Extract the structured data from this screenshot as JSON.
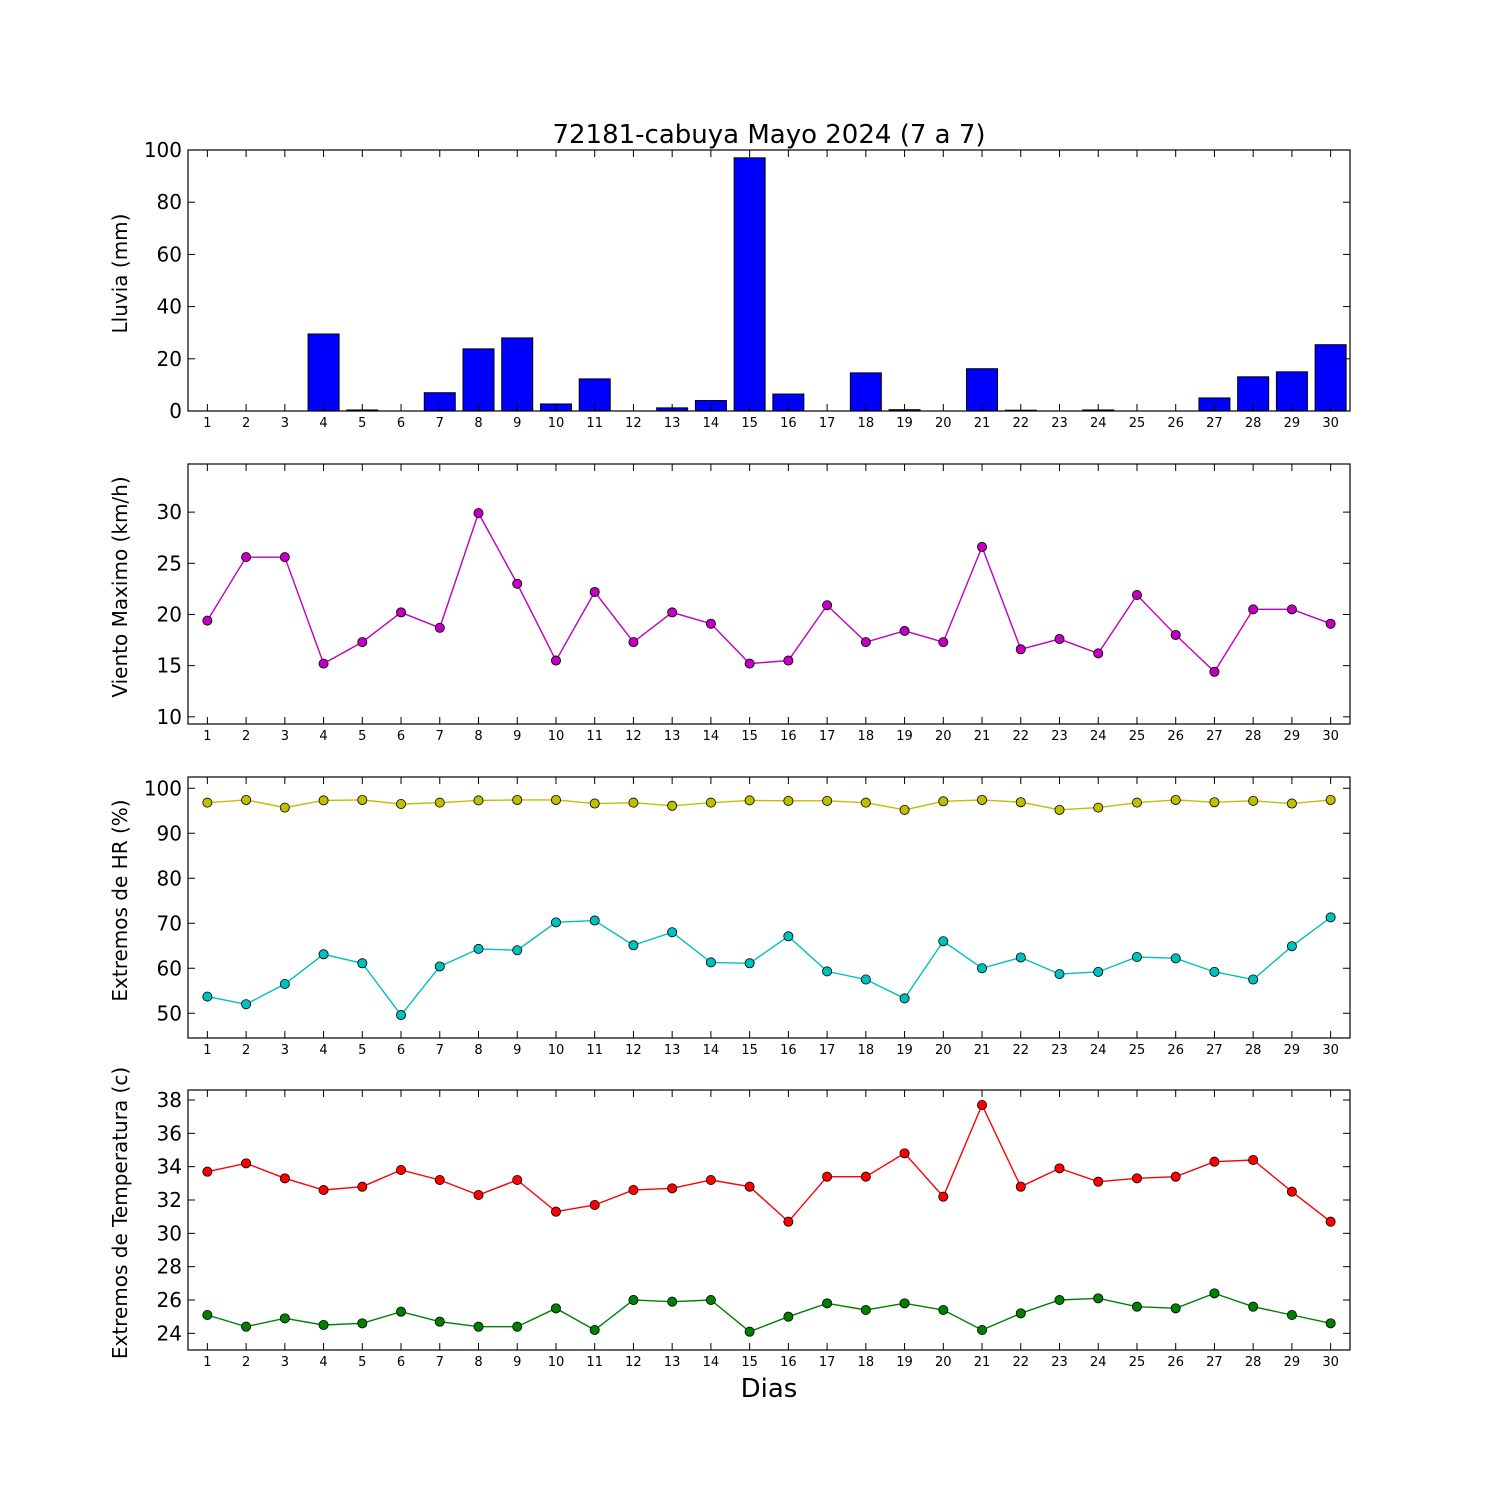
{
  "chart_data": [
    {
      "type": "bar",
      "title": "72181-cabuya Mayo 2024  (7 a 7)",
      "ylabel": "Lluvia (mm)",
      "xlabel": "",
      "ylim": [
        0,
        100
      ],
      "yticks": [
        0,
        20,
        40,
        60,
        80,
        100
      ],
      "categories": [
        "1",
        "2",
        "3",
        "4",
        "5",
        "6",
        "7",
        "8",
        "9",
        "10",
        "11",
        "12",
        "13",
        "14",
        "15",
        "16",
        "17",
        "18",
        "19",
        "20",
        "21",
        "22",
        "23",
        "24",
        "25",
        "26",
        "27",
        "28",
        "29",
        "30"
      ],
      "values": [
        0,
        0,
        0,
        29.5,
        0.4,
        0,
        7.0,
        23.8,
        28.0,
        2.7,
        12.3,
        0,
        1.2,
        4.0,
        97.0,
        6.5,
        0,
        14.6,
        0.5,
        0,
        16.2,
        0.3,
        0,
        0.4,
        0,
        0,
        5.0,
        13.1,
        15.0,
        25.4
      ],
      "color": "#0000ff",
      "grid": false
    },
    {
      "type": "line",
      "title": "",
      "ylabel": "Viento Maximo (km/h)",
      "xlabel": "",
      "ylim": [
        9.3,
        34.7
      ],
      "yticks": [
        10,
        15,
        20,
        25,
        30
      ],
      "categories": [
        "1",
        "2",
        "3",
        "4",
        "5",
        "6",
        "7",
        "8",
        "9",
        "10",
        "11",
        "12",
        "13",
        "14",
        "15",
        "16",
        "17",
        "18",
        "19",
        "20",
        "21",
        "22",
        "23",
        "24",
        "25",
        "26",
        "27",
        "28",
        "29",
        "30"
      ],
      "series": [
        {
          "color": "#bf00bf",
          "values": [
            19.4,
            25.6,
            25.6,
            15.2,
            17.3,
            20.2,
            18.7,
            29.9,
            23.0,
            15.5,
            22.2,
            17.3,
            20.2,
            19.1,
            15.2,
            15.5,
            20.9,
            17.3,
            18.4,
            17.3,
            26.6,
            16.6,
            17.6,
            16.2,
            21.9,
            18.0,
            14.4,
            20.5,
            20.5,
            19.1
          ]
        }
      ],
      "grid": false
    },
    {
      "type": "line",
      "title": "",
      "ylabel": "Extremos de HR (%)",
      "xlabel": "",
      "ylim": [
        44.5,
        102.5
      ],
      "yticks": [
        50,
        60,
        70,
        80,
        90,
        100
      ],
      "categories": [
        "1",
        "2",
        "3",
        "4",
        "5",
        "6",
        "7",
        "8",
        "9",
        "10",
        "11",
        "12",
        "13",
        "14",
        "15",
        "16",
        "17",
        "18",
        "19",
        "20",
        "21",
        "22",
        "23",
        "24",
        "25",
        "26",
        "27",
        "28",
        "29",
        "30"
      ],
      "series": [
        {
          "color": "#bfbf00",
          "values": [
            96.8,
            97.4,
            95.7,
            97.3,
            97.4,
            96.5,
            96.8,
            97.3,
            97.4,
            97.4,
            96.6,
            96.8,
            96.1,
            96.8,
            97.3,
            97.2,
            97.2,
            96.8,
            95.2,
            97.1,
            97.4,
            96.9,
            95.2,
            95.7,
            96.8,
            97.4,
            96.9,
            97.2,
            96.6,
            97.4
          ]
        },
        {
          "color": "#00bfbf",
          "values": [
            53.7,
            52.0,
            56.5,
            63.1,
            61.1,
            49.6,
            60.4,
            64.3,
            64.0,
            70.2,
            70.6,
            65.1,
            68.0,
            61.3,
            61.1,
            67.1,
            59.3,
            57.5,
            53.3,
            66.0,
            60.0,
            62.4,
            58.7,
            59.2,
            62.5,
            62.2,
            59.2,
            57.5,
            64.9,
            71.3
          ]
        }
      ],
      "grid": false
    },
    {
      "type": "line",
      "title": "",
      "ylabel": "Extremos de Temperatura (c)",
      "xlabel": "Dias",
      "ylim": [
        23.0,
        38.6
      ],
      "yticks": [
        24,
        26,
        28,
        30,
        32,
        34,
        36,
        38
      ],
      "categories": [
        "1",
        "2",
        "3",
        "4",
        "5",
        "6",
        "7",
        "8",
        "9",
        "10",
        "11",
        "12",
        "13",
        "14",
        "15",
        "16",
        "17",
        "18",
        "19",
        "20",
        "21",
        "22",
        "23",
        "24",
        "25",
        "26",
        "27",
        "28",
        "29",
        "30"
      ],
      "series": [
        {
          "color": "#ff0000",
          "values": [
            33.7,
            34.2,
            33.3,
            32.6,
            32.8,
            33.8,
            33.2,
            32.3,
            33.2,
            31.3,
            31.7,
            32.6,
            32.7,
            33.2,
            32.8,
            30.7,
            33.4,
            33.4,
            34.8,
            32.2,
            37.7,
            32.8,
            33.9,
            33.1,
            33.3,
            33.4,
            34.3,
            34.4,
            32.5,
            30.7
          ]
        },
        {
          "color": "#008000",
          "values": [
            25.1,
            24.4,
            24.9,
            24.5,
            24.6,
            25.3,
            24.7,
            24.4,
            24.4,
            25.5,
            24.2,
            26.0,
            25.9,
            26.0,
            24.1,
            25.0,
            25.8,
            25.4,
            25.8,
            25.4,
            24.2,
            25.2,
            26.0,
            26.1,
            25.6,
            25.5,
            26.4,
            25.6,
            25.1,
            24.6
          ]
        }
      ],
      "grid": false
    }
  ]
}
